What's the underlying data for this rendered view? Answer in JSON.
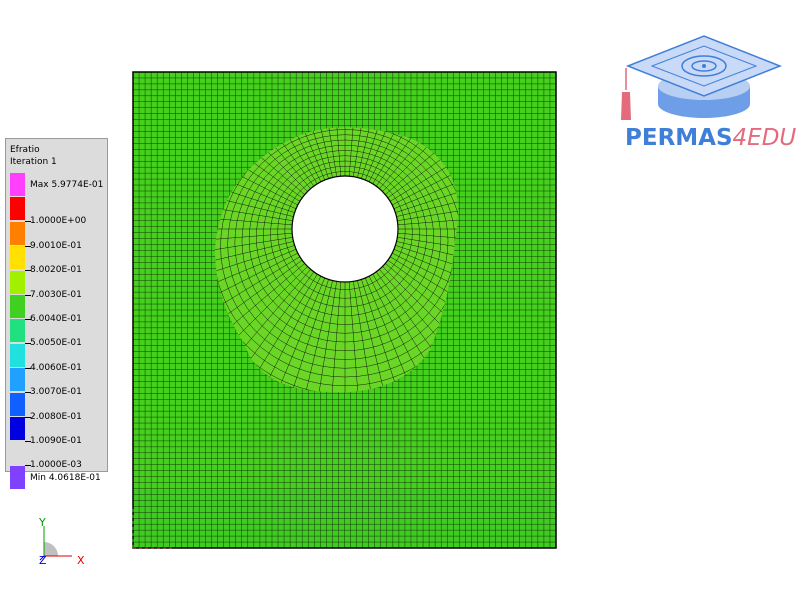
{
  "legend": {
    "title": "Efratio",
    "subtitle": "Iteration 1",
    "entries": [
      {
        "label": "Max 5.9774E-01",
        "color": "#ff40ff"
      },
      {
        "label": "1.0000E+00",
        "color": "#ff0000"
      },
      {
        "label": "9.0010E-01",
        "color": "#ff7f00"
      },
      {
        "label": "8.0020E-01",
        "color": "#ffe000"
      },
      {
        "label": "7.0030E-01",
        "color": "#a0f000"
      },
      {
        "label": "6.0040E-01",
        "color": "#40d020"
      },
      {
        "label": "5.0050E-01",
        "color": "#20e080"
      },
      {
        "label": "4.0060E-01",
        "color": "#20e0e0"
      },
      {
        "label": "3.0070E-01",
        "color": "#20a0ff"
      },
      {
        "label": "2.0080E-01",
        "color": "#1060ff"
      },
      {
        "label": "1.0090E-01",
        "color": "#0000e0"
      },
      {
        "label": "1.0000E-03",
        "color": ""
      },
      {
        "label": "Min 4.0618E-01",
        "color": "#8040ff"
      }
    ]
  },
  "logo": {
    "brand": "PERMAS",
    "suffix": "4EDU",
    "brand_color": "#3f7fd8",
    "suffix_color": "#e36b7b",
    "icon": "graduation-cap-icon"
  },
  "triad": {
    "y": "Y",
    "z": "Z",
    "x": "X"
  },
  "mesh": {
    "base_color": "#44d01c",
    "lower_color": "#3fcc20",
    "highlight_color": "#7cde22",
    "line_color": "#0a0a0a",
    "hole_color": "#ffffff"
  }
}
